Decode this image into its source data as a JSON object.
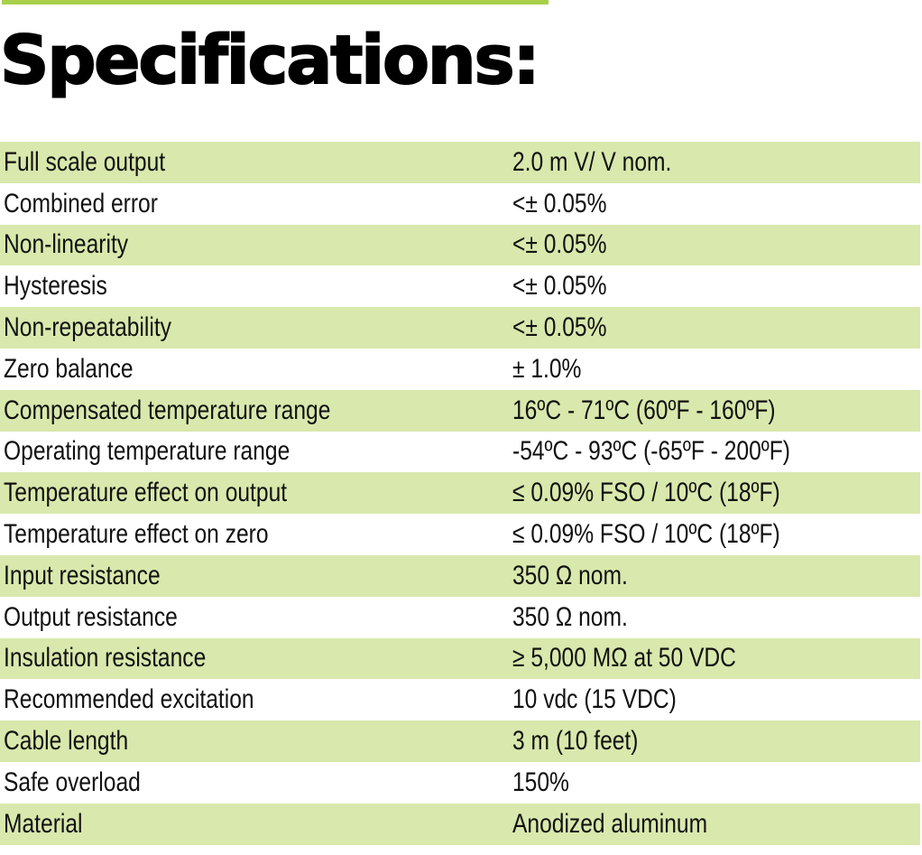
{
  "colors": {
    "accent_green": "#a8d04a",
    "row_band": "#d9e8ac"
  },
  "title": "Specifications:",
  "specs": [
    {
      "label": "Full scale output",
      "value": "2.0 m  V/ V nom."
    },
    {
      "label": "Combined error",
      "value": "<± 0.05%"
    },
    {
      "label": "Non-linearity",
      "value": "<± 0.05%"
    },
    {
      "label": "Hysteresis",
      "value": "<± 0.05%"
    },
    {
      "label": "Non-repeatability",
      "value": "<± 0.05%"
    },
    {
      "label": "Zero balance",
      "value": "± 1.0%"
    },
    {
      "label": "Compensated temperature range",
      "value": "16ºC - 71ºC (60ºF - 160ºF)"
    },
    {
      "label": "Operating temperature range",
      "value": "-54ºC - 93ºC (-65ºF - 200ºF)"
    },
    {
      "label": "Temperature effect on output",
      "value": "≤ 0.09% FSO / 10ºC (18ºF)"
    },
    {
      "label": "Temperature effect on zero",
      "value": "≤ 0.09% FSO / 10ºC (18ºF)"
    },
    {
      "label": "Input resistance",
      "value": "350 Ω nom."
    },
    {
      "label": "Output resistance",
      "value": "350 Ω nom."
    },
    {
      "label": "Insulation resistance",
      "value": "≥ 5,000 MΩ at 50 VDC"
    },
    {
      "label": "Recommended excitation",
      "value": "10 vdc (15 VDC)"
    },
    {
      "label": "Cable length",
      "value": "3 m (10 feet)"
    },
    {
      "label": "Safe overload",
      "value": "150%"
    },
    {
      "label": "Material",
      "value": "Anodized aluminum"
    }
  ]
}
